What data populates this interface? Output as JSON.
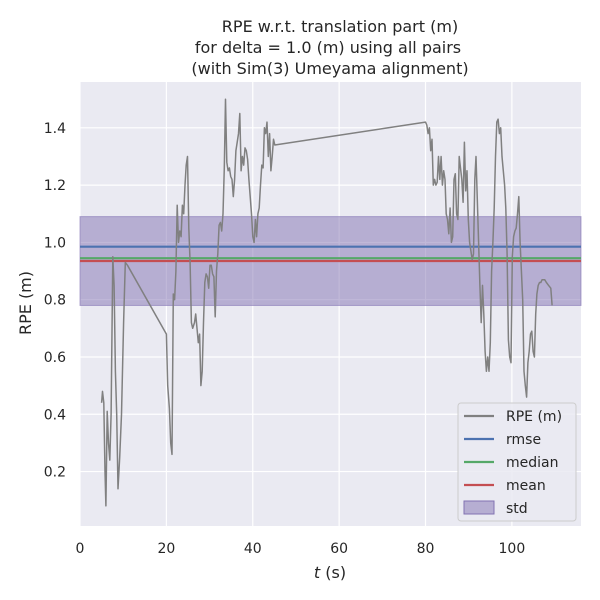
{
  "chart_data": {
    "type": "line",
    "title": [
      "RPE w.r.t. translation part (m)",
      "for delta = 1.0 (m) using all pairs",
      "(with Sim(3) Umeyama alignment)"
    ],
    "xlabel_var": "t",
    "xlabel_unit": " (s)",
    "ylabel": "RPE (m)",
    "xlim": [
      0,
      116
    ],
    "ylim": [
      0.01,
      1.56
    ],
    "xticks": [
      0,
      20,
      40,
      60,
      80,
      100
    ],
    "yticks": [
      0.2,
      0.4,
      0.6,
      0.8,
      1.0,
      1.2,
      1.4
    ],
    "grid": true,
    "legend_position": "lower-right",
    "colors": {
      "background": "#eaeaf2",
      "grid": "#ffffff",
      "series": "#808080",
      "rmse": "#4c72b0",
      "median": "#55a868",
      "mean": "#c44e52",
      "std": "#8172b2"
    },
    "stats": {
      "rmse": 0.985,
      "median": 0.945,
      "mean": 0.935,
      "std": 0.155
    },
    "legend": [
      {
        "label": "RPE (m)",
        "kind": "line",
        "color": "#808080"
      },
      {
        "label": "rmse",
        "kind": "line",
        "color": "#4c72b0"
      },
      {
        "label": "median",
        "kind": "line",
        "color": "#55a868"
      },
      {
        "label": "mean",
        "kind": "line",
        "color": "#c44e52"
      },
      {
        "label": "std",
        "kind": "patch",
        "color": "#8172b2"
      }
    ],
    "series": [
      {
        "name": "RPE (m)",
        "points": [
          [
            5.0,
            0.44
          ],
          [
            5.2,
            0.48
          ],
          [
            5.5,
            0.44
          ],
          [
            5.8,
            0.2
          ],
          [
            6.0,
            0.08
          ],
          [
            6.3,
            0.41
          ],
          [
            6.6,
            0.3
          ],
          [
            6.9,
            0.24
          ],
          [
            7.2,
            0.4
          ],
          [
            7.6,
            0.95
          ],
          [
            7.9,
            0.85
          ],
          [
            8.2,
            0.55
          ],
          [
            8.5,
            0.4
          ],
          [
            8.8,
            0.14
          ],
          [
            9.2,
            0.25
          ],
          [
            9.6,
            0.4
          ],
          [
            10.1,
            0.72
          ],
          [
            10.5,
            0.93
          ],
          [
            11.0,
            0.92
          ],
          [
            20.0,
            0.68
          ],
          [
            20.3,
            0.5
          ],
          [
            20.7,
            0.42
          ],
          [
            21.0,
            0.3
          ],
          [
            21.3,
            0.26
          ],
          [
            21.6,
            0.82
          ],
          [
            21.9,
            0.8
          ],
          [
            22.2,
            0.9
          ],
          [
            22.5,
            1.13
          ],
          [
            22.8,
            1.0
          ],
          [
            23.1,
            1.04
          ],
          [
            23.4,
            1.02
          ],
          [
            23.7,
            1.13
          ],
          [
            24.0,
            1.1
          ],
          [
            24.3,
            1.2
          ],
          [
            24.6,
            1.27
          ],
          [
            24.9,
            1.3
          ],
          [
            25.2,
            1.05
          ],
          [
            25.5,
            0.93
          ],
          [
            25.8,
            0.72
          ],
          [
            26.1,
            0.7
          ],
          [
            26.5,
            0.72
          ],
          [
            26.8,
            0.75
          ],
          [
            27.1,
            0.7
          ],
          [
            27.4,
            0.65
          ],
          [
            27.7,
            0.68
          ],
          [
            28.0,
            0.5
          ],
          [
            28.3,
            0.55
          ],
          [
            28.6,
            0.72
          ],
          [
            28.9,
            0.86
          ],
          [
            29.2,
            0.89
          ],
          [
            29.5,
            0.88
          ],
          [
            29.8,
            0.84
          ],
          [
            30.1,
            0.92
          ],
          [
            30.4,
            0.92
          ],
          [
            30.7,
            0.89
          ],
          [
            31.0,
            0.88
          ],
          [
            31.3,
            0.74
          ],
          [
            31.6,
            0.9
          ],
          [
            31.9,
            0.96
          ],
          [
            32.2,
            1.06
          ],
          [
            32.5,
            1.07
          ],
          [
            32.8,
            1.04
          ],
          [
            33.1,
            1.1
          ],
          [
            33.4,
            1.26
          ],
          [
            33.7,
            1.5
          ],
          [
            34.0,
            1.28
          ],
          [
            34.3,
            1.25
          ],
          [
            34.6,
            1.26
          ],
          [
            34.9,
            1.23
          ],
          [
            35.2,
            1.22
          ],
          [
            35.5,
            1.16
          ],
          [
            35.8,
            1.22
          ],
          [
            36.1,
            1.32
          ],
          [
            36.4,
            1.35
          ],
          [
            36.7,
            1.38
          ],
          [
            37.0,
            1.45
          ],
          [
            37.3,
            1.25
          ],
          [
            37.6,
            1.3
          ],
          [
            37.9,
            1.27
          ],
          [
            38.2,
            1.33
          ],
          [
            38.5,
            1.32
          ],
          [
            38.8,
            1.29
          ],
          [
            39.1,
            1.22
          ],
          [
            39.4,
            1.16
          ],
          [
            39.7,
            1.1
          ],
          [
            40.0,
            1.02
          ],
          [
            40.3,
            1.0
          ],
          [
            40.6,
            1.08
          ],
          [
            40.9,
            1.02
          ],
          [
            41.2,
            1.1
          ],
          [
            41.5,
            1.12
          ],
          [
            41.8,
            1.2
          ],
          [
            42.1,
            1.27
          ],
          [
            42.4,
            1.26
          ],
          [
            42.7,
            1.4
          ],
          [
            43.0,
            1.38
          ],
          [
            43.3,
            1.42
          ],
          [
            43.6,
            1.3
          ],
          [
            43.9,
            1.38
          ],
          [
            44.2,
            1.25
          ],
          [
            44.5,
            1.3
          ],
          [
            44.8,
            1.36
          ],
          [
            45.1,
            1.34
          ],
          [
            80.0,
            1.42
          ],
          [
            80.3,
            1.41
          ],
          [
            80.6,
            1.38
          ],
          [
            80.9,
            1.4
          ],
          [
            81.2,
            1.32
          ],
          [
            81.5,
            1.36
          ],
          [
            81.8,
            1.2
          ],
          [
            82.1,
            1.22
          ],
          [
            82.4,
            1.2
          ],
          [
            82.7,
            1.21
          ],
          [
            83.0,
            1.3
          ],
          [
            83.3,
            1.22
          ],
          [
            83.6,
            1.3
          ],
          [
            83.9,
            1.2
          ],
          [
            84.2,
            1.25
          ],
          [
            84.5,
            1.22
          ],
          [
            84.8,
            1.1
          ],
          [
            85.1,
            1.08
          ],
          [
            85.4,
            1.03
          ],
          [
            85.7,
            1.12
          ],
          [
            86.0,
            1.0
          ],
          [
            86.3,
            1.02
          ],
          [
            86.6,
            1.22
          ],
          [
            86.9,
            1.24
          ],
          [
            87.2,
            1.1
          ],
          [
            87.5,
            1.08
          ],
          [
            87.8,
            1.3
          ],
          [
            88.1,
            1.26
          ],
          [
            88.4,
            1.22
          ],
          [
            88.7,
            1.14
          ],
          [
            89.0,
            1.35
          ],
          [
            89.3,
            1.18
          ],
          [
            89.6,
            1.25
          ],
          [
            89.9,
            1.08
          ],
          [
            90.2,
            1.0
          ],
          [
            90.5,
            0.97
          ],
          [
            90.8,
            0.94
          ],
          [
            91.1,
            0.96
          ],
          [
            91.4,
            1.22
          ],
          [
            91.7,
            1.3
          ],
          [
            92.0,
            1.15
          ],
          [
            92.3,
            1.0
          ],
          [
            92.6,
            0.85
          ],
          [
            92.9,
            0.72
          ],
          [
            93.2,
            0.85
          ],
          [
            93.5,
            0.75
          ],
          [
            93.8,
            0.62
          ],
          [
            94.1,
            0.55
          ],
          [
            94.4,
            0.6
          ],
          [
            94.7,
            0.55
          ],
          [
            95.0,
            0.65
          ],
          [
            95.3,
            0.9
          ],
          [
            95.6,
            1.0
          ],
          [
            95.9,
            1.12
          ],
          [
            96.2,
            1.3
          ],
          [
            96.5,
            1.42
          ],
          [
            96.8,
            1.43
          ],
          [
            97.1,
            1.38
          ],
          [
            97.4,
            1.4
          ],
          [
            97.7,
            1.3
          ],
          [
            98.0,
            1.25
          ],
          [
            98.3,
            1.2
          ],
          [
            98.6,
            1.12
          ],
          [
            98.9,
            0.96
          ],
          [
            99.2,
            0.66
          ],
          [
            99.5,
            0.6
          ],
          [
            99.8,
            0.58
          ],
          [
            100.1,
            0.95
          ],
          [
            100.4,
            1.02
          ],
          [
            100.7,
            1.04
          ],
          [
            101.0,
            1.05
          ],
          [
            101.3,
            1.1
          ],
          [
            101.6,
            1.16
          ],
          [
            101.9,
            1.0
          ],
          [
            102.2,
            0.9
          ],
          [
            102.5,
            0.8
          ],
          [
            102.8,
            0.55
          ],
          [
            103.1,
            0.5
          ],
          [
            103.4,
            0.46
          ],
          [
            103.7,
            0.58
          ],
          [
            104.0,
            0.62
          ],
          [
            104.3,
            0.68
          ],
          [
            104.6,
            0.69
          ],
          [
            104.9,
            0.62
          ],
          [
            105.2,
            0.6
          ],
          [
            105.5,
            0.75
          ],
          [
            105.8,
            0.82
          ],
          [
            106.1,
            0.85
          ],
          [
            106.4,
            0.86
          ],
          [
            106.7,
            0.86
          ],
          [
            107.0,
            0.87
          ],
          [
            107.3,
            0.87
          ],
          [
            107.6,
            0.87
          ],
          [
            108.0,
            0.86
          ],
          [
            108.5,
            0.85
          ],
          [
            109.0,
            0.84
          ],
          [
            109.3,
            0.78
          ]
        ]
      }
    ]
  }
}
